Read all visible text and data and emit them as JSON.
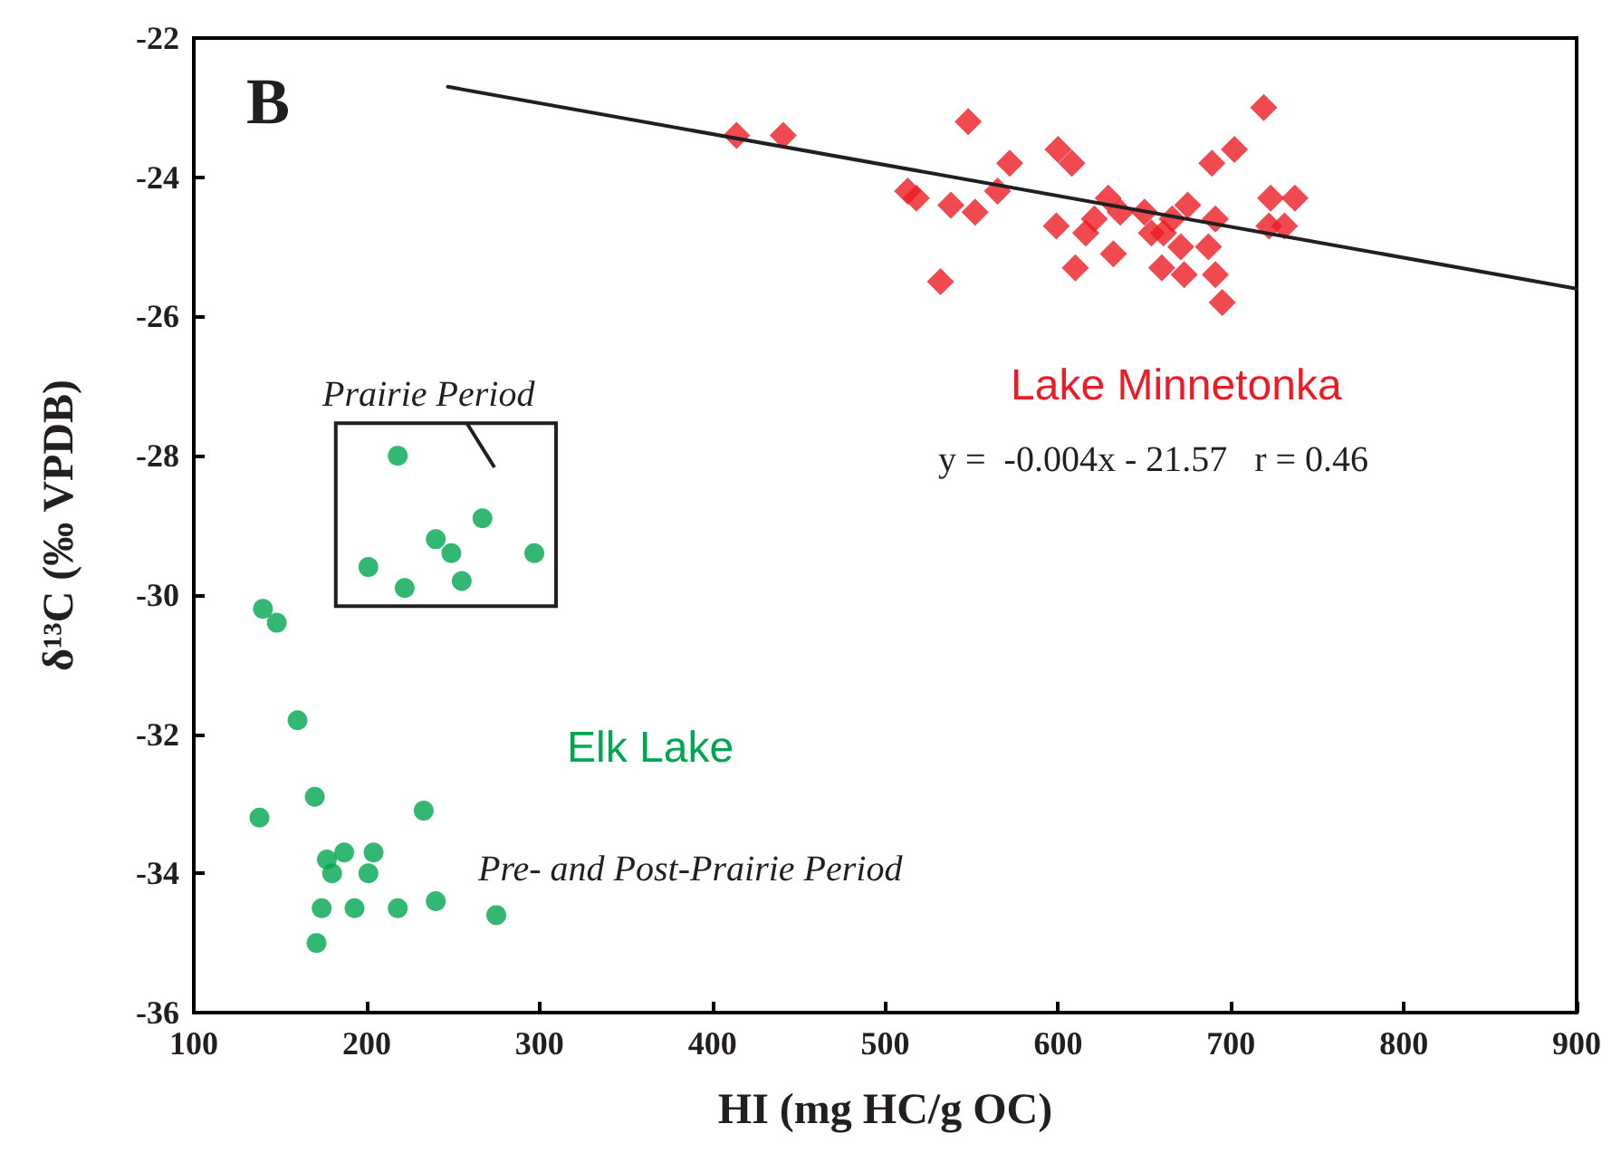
{
  "chart_data": {
    "type": "scatter",
    "xlabel": "HI (mg HC/g OC)",
    "ylabel": "δ¹³C (‰ VPDB)",
    "xlim": [
      100,
      900
    ],
    "xticks": [
      100,
      200,
      300,
      400,
      500,
      600,
      700,
      800,
      900
    ],
    "ylim": [
      -36,
      -22
    ],
    "yticks": [
      -36,
      -34,
      -32,
      -30,
      -28,
      -26,
      -24,
      -22
    ],
    "grid": false,
    "legend": false,
    "annotations": [
      "B",
      "Prairie Period",
      "Pre- and Post-Prairie Period",
      "y =  -0.004x - 21.57   r = 0.46"
    ],
    "series": [
      {
        "name": "Lake Minnetonka",
        "color": "#ed1c24",
        "marker": "diamond",
        "x": [
          414,
          441,
          548,
          513,
          518,
          538,
          552,
          532,
          572,
          565,
          600,
          608,
          599,
          629,
          636,
          621,
          616,
          610,
          632,
          650,
          654,
          661,
          666,
          675,
          660,
          671,
          673,
          687,
          691,
          695,
          691,
          689,
          702,
          719,
          723,
          737,
          722,
          731
        ],
        "values": [
          -23.4,
          -23.4,
          -23.2,
          -24.2,
          -24.3,
          -24.4,
          -24.5,
          -25.5,
          -23.8,
          -24.2,
          -23.6,
          -23.8,
          -24.7,
          -24.3,
          -24.5,
          -24.6,
          -24.8,
          -25.3,
          -25.1,
          -24.5,
          -24.8,
          -24.8,
          -24.6,
          -24.4,
          -25.3,
          -25.0,
          -25.4,
          -25.0,
          -25.4,
          -25.8,
          -24.6,
          -23.8,
          -23.6,
          -23.0,
          -24.3,
          -24.3,
          -24.7,
          -24.7
        ]
      },
      {
        "name": "Elk Lake",
        "color": "#00a651",
        "marker": "circle",
        "x": [
          140,
          148,
          160,
          138,
          170,
          233,
          177,
          187,
          204,
          180,
          201,
          174,
          193,
          218,
          240,
          275,
          171
        ],
        "values": [
          -30.2,
          -30.4,
          -31.8,
          -33.2,
          -32.9,
          -33.1,
          -33.8,
          -33.7,
          -33.7,
          -34.0,
          -34.0,
          -34.5,
          -34.5,
          -34.5,
          -34.4,
          -34.6,
          -35.0
        ]
      },
      {
        "color": "#00a651",
        "marker": "circle",
        "x": [
          218,
          267,
          240,
          249,
          297,
          201,
          255,
          222
        ],
        "values": [
          -28.0,
          -28.9,
          -29.2,
          -29.4,
          -29.4,
          -29.6,
          -29.8,
          -29.9
        ]
      },
      {
        "type": "line",
        "color": "#231f20",
        "marker": "none",
        "line_style": "solid",
        "x": [
          247,
          900
        ],
        "values": [
          -22.7,
          -25.6
        ]
      }
    ]
  }
}
